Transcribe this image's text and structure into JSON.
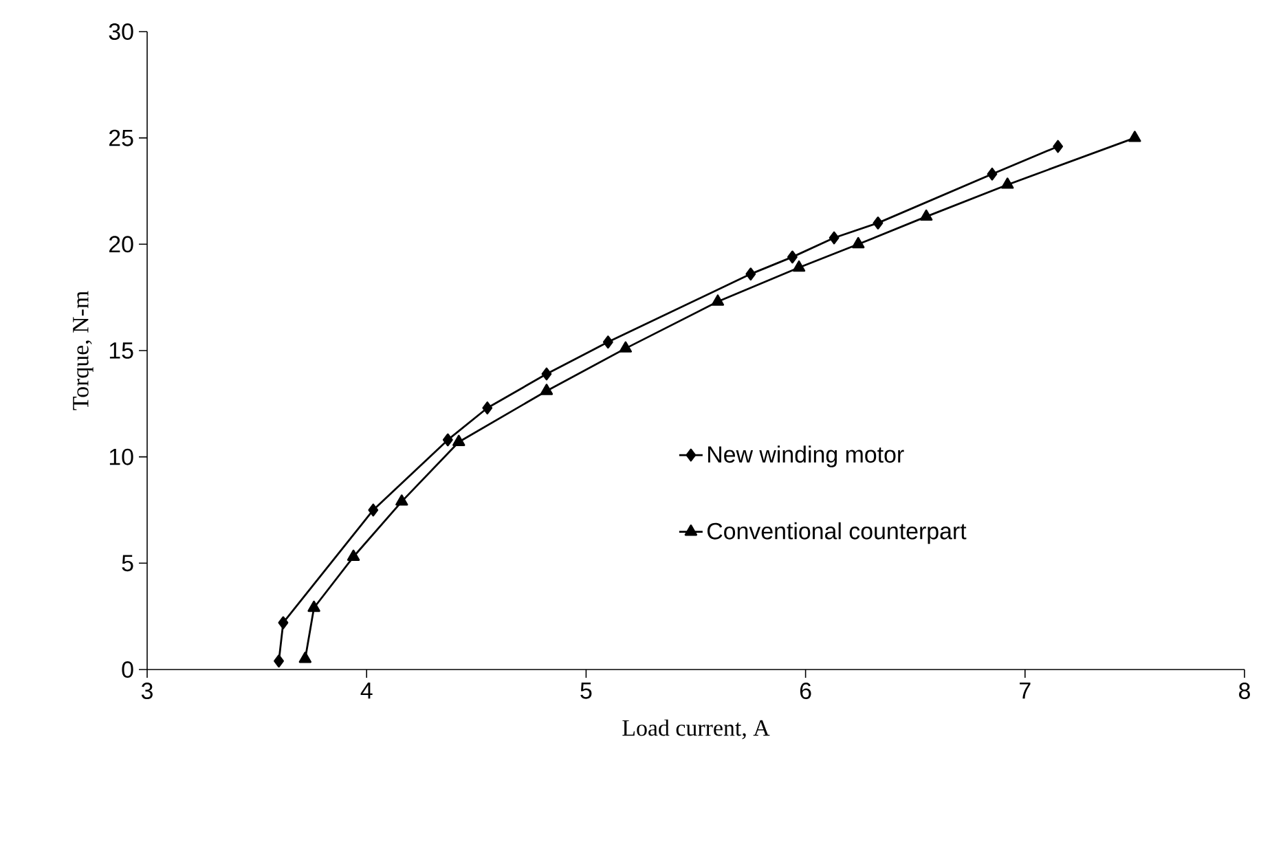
{
  "chart_data": {
    "type": "line",
    "xlabel": "Load current, A",
    "ylabel": "Torque, N-m",
    "xlim": [
      3,
      8
    ],
    "xticks": [
      3,
      4,
      5,
      6,
      7,
      8
    ],
    "ylim": [
      0,
      30
    ],
    "yticks": [
      0,
      5,
      10,
      15,
      20,
      25,
      30
    ],
    "grid": false,
    "legend": "right",
    "line_style": "solid",
    "series": [
      {
        "name": "New winding motor",
        "color": "#000000",
        "marker": "diamond",
        "x": [
          3.6,
          3.62,
          4.03,
          4.37,
          4.55,
          4.82,
          5.1,
          5.75,
          5.94,
          6.13,
          6.33,
          6.85,
          7.15
        ],
        "values": [
          0.4,
          2.2,
          7.5,
          10.8,
          12.3,
          13.9,
          15.4,
          18.6,
          19.4,
          20.3,
          21.0,
          23.3,
          24.6
        ]
      },
      {
        "name": "Conventional counterpart",
        "color": "#000000",
        "marker": "triangle",
        "x": [
          3.72,
          3.76,
          3.94,
          4.16,
          4.42,
          4.82,
          5.18,
          5.6,
          5.97,
          6.24,
          6.55,
          6.92,
          7.5
        ],
        "values": [
          0.5,
          2.9,
          5.3,
          7.9,
          10.7,
          13.1,
          15.1,
          17.3,
          18.9,
          20.0,
          21.3,
          22.8,
          25.0
        ]
      }
    ]
  }
}
